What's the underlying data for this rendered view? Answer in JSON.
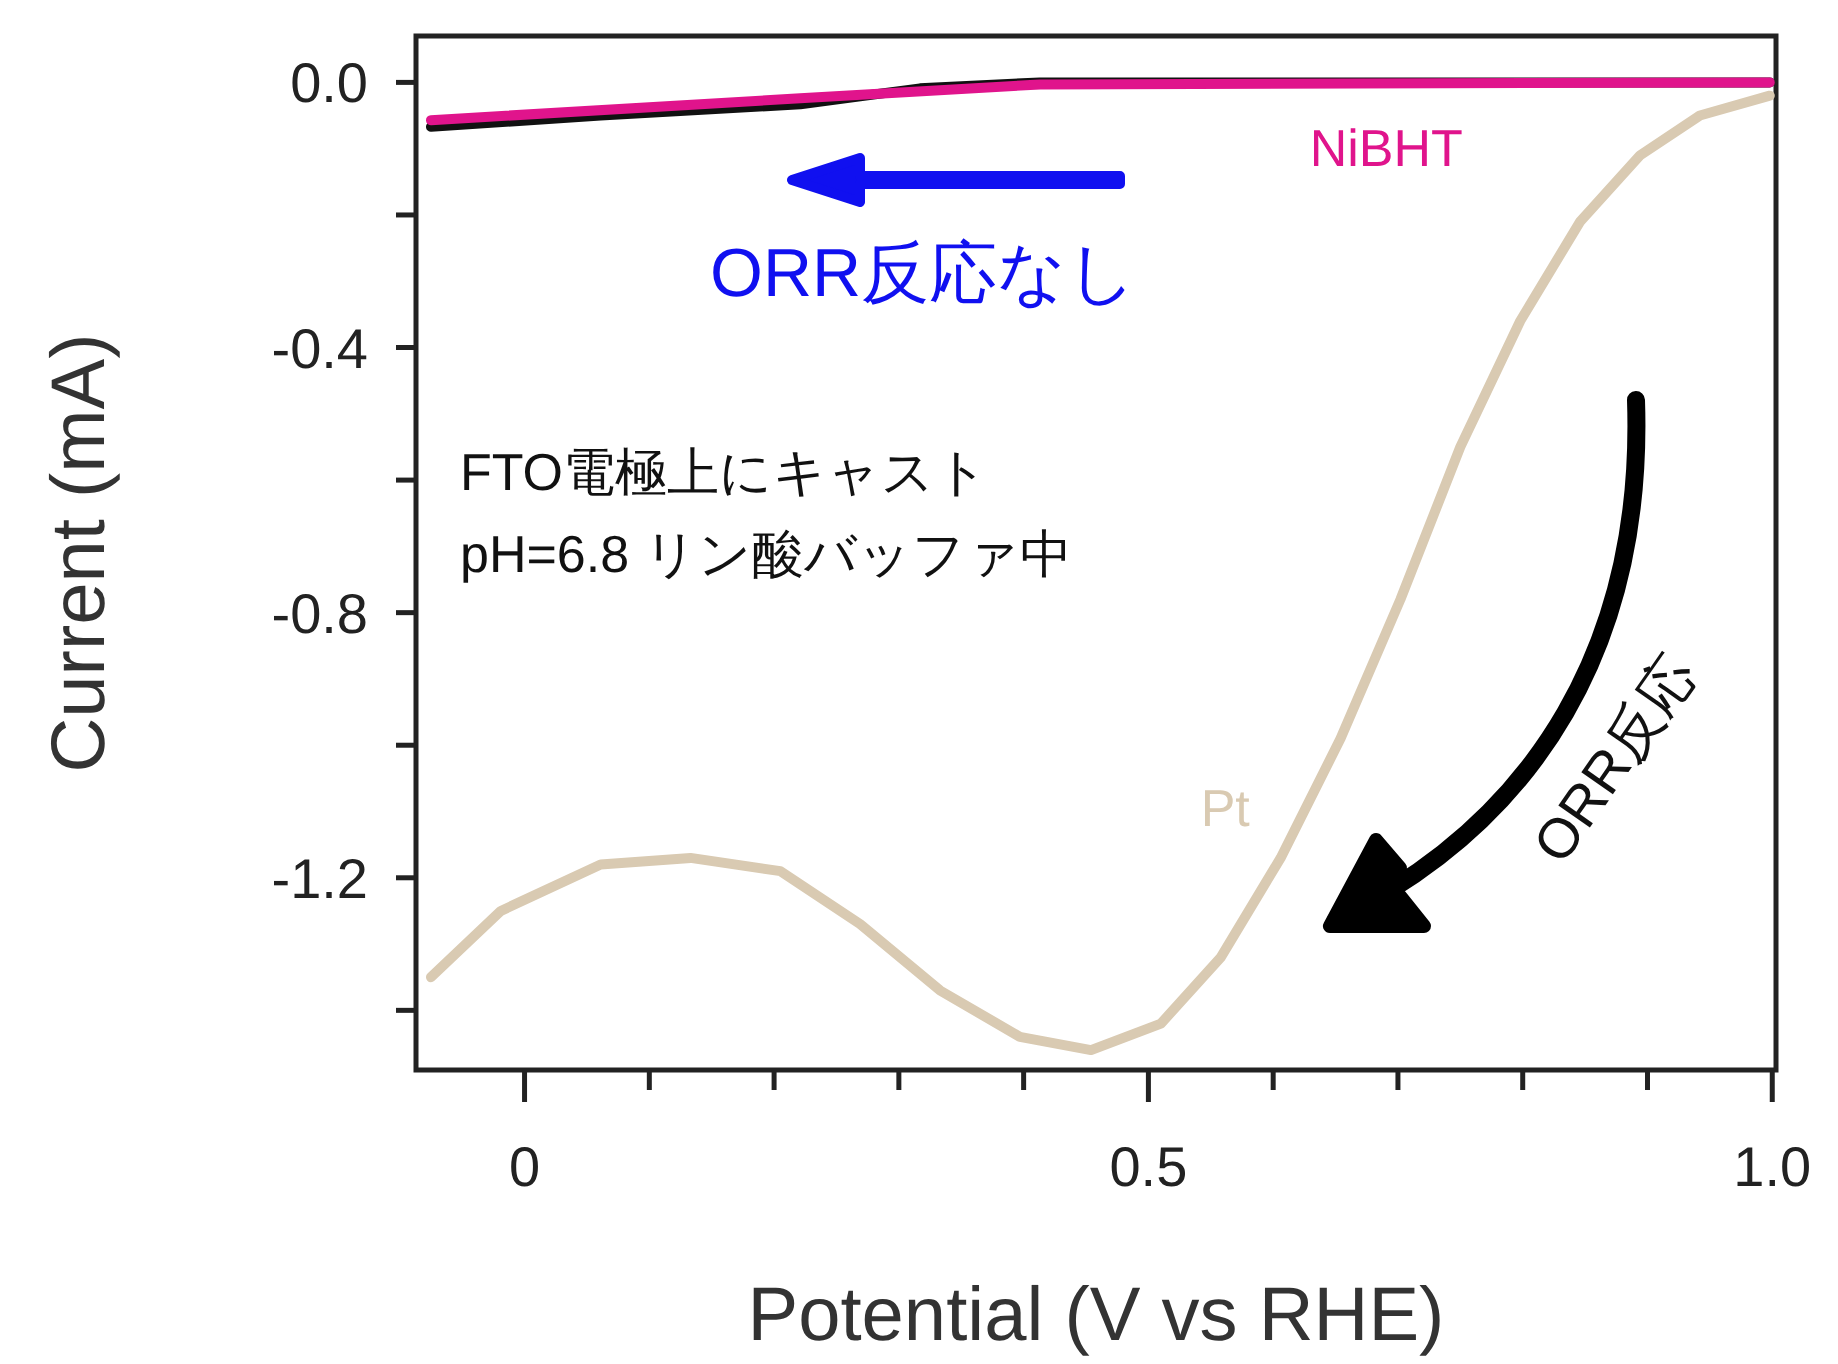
{
  "chart_data": {
    "type": "line",
    "xlabel": "Potential (V vs RHE)",
    "ylabel": "Current (mA)",
    "xlim": [
      -0.087,
      1.003
    ],
    "ylim": [
      -1.49,
      0.07
    ],
    "xticks": [
      {
        "value": 0,
        "label": "0"
      },
      {
        "value": 0.1,
        "label": null
      },
      {
        "value": 0.2,
        "label": null
      },
      {
        "value": 0.3,
        "label": null
      },
      {
        "value": 0.4,
        "label": null
      },
      0.5,
      {
        "value": 0.6,
        "label": null
      },
      {
        "value": 0.7,
        "label": null
      },
      {
        "value": 0.8,
        "label": null
      },
      {
        "value": 0.9,
        "label": null
      },
      {
        "value": 1.0,
        "label": "1.0"
      }
    ],
    "yticks": [
      {
        "value": 0,
        "label": "0.0"
      },
      {
        "value": -0.2,
        "label": null
      },
      {
        "value": -0.4,
        "label": "-0.4"
      },
      {
        "value": -0.6,
        "label": null
      },
      {
        "value": -0.8,
        "label": "-0.8"
      },
      {
        "value": -1.0,
        "label": null
      },
      {
        "value": -1.2,
        "label": "-1.2"
      },
      {
        "value": -1.4,
        "label": null
      }
    ],
    "grid": false,
    "legend": false,
    "marker": "none",
    "line_style": "solid",
    "series": [
      {
        "name": "Pt",
        "color": "#d9cab2",
        "x": [
          -0.075,
          -0.019,
          0.061,
          0.133,
          0.205,
          0.269,
          0.333,
          0.397,
          0.454,
          0.51,
          0.558,
          0.606,
          0.654,
          0.702,
          0.75,
          0.798,
          0.846,
          0.894,
          0.942,
          0.998
        ],
        "values": [
          -1.35,
          -1.25,
          -1.18,
          -1.17,
          -1.19,
          -1.27,
          -1.37,
          -1.44,
          -1.46,
          -1.42,
          -1.32,
          -1.17,
          -0.99,
          -0.78,
          -0.55,
          -0.36,
          -0.21,
          -0.11,
          -0.05,
          -0.02
        ]
      },
      {
        "color": "#111111",
        "x": [
          -0.075,
          0.061,
          0.221,
          0.317,
          0.413,
          0.998
        ],
        "values": [
          -0.067,
          -0.05,
          -0.033,
          -0.009,
          0.0,
          0.0
        ]
      },
      {
        "name": "NiBHT",
        "color": "#e0148c",
        "x": [
          -0.075,
          0.221,
          0.413,
          0.998
        ],
        "values": [
          -0.057,
          -0.024,
          -0.003,
          0.0
        ]
      }
    ],
    "annotations": [
      "ORR反応なし",
      "FTO電極上にキャスト",
      "pH=6.8 リン酸バッファ中",
      "ORR反応"
    ]
  }
}
